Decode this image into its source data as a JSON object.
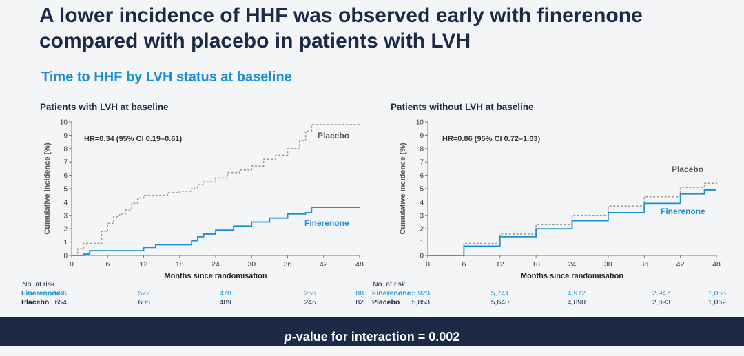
{
  "slide": {
    "title": "A lower incidence of HHF was observed early with finerenone compared with placebo in patients with LVH",
    "subtitle": "Time to HHF by LVH status at baseline",
    "footer_p": "p",
    "footer_rest": "-value for interaction = 0.002"
  },
  "risk_table": {
    "header": "No. at risk",
    "fin_label": "Finerenone",
    "pla_label": "Placebo"
  },
  "chart_data": [
    {
      "type": "line",
      "title": "Patients with LVH at baseline",
      "xlabel": "Months since randomisation",
      "ylabel": "Cumulative incidence (%)",
      "xlim": [
        0,
        48
      ],
      "ylim": [
        0,
        10
      ],
      "xticks": [
        0,
        6,
        12,
        18,
        24,
        30,
        36,
        42,
        48
      ],
      "yticks": [
        0,
        1,
        2,
        3,
        4,
        5,
        6,
        7,
        8,
        9,
        10
      ],
      "annotation": "HR=0.34 (95% CI 0.19–0.61)",
      "series": [
        {
          "name": "Placebo",
          "color": "#9a9a9a",
          "dashed": true,
          "x": [
            0,
            1,
            2,
            3,
            5,
            6,
            7,
            8,
            9,
            10,
            11,
            12,
            14,
            16,
            18,
            20,
            21,
            22,
            24,
            26,
            28,
            30,
            32,
            34,
            36,
            38,
            39,
            40,
            42,
            48
          ],
          "y": [
            0,
            0.5,
            0.9,
            0.9,
            1.8,
            2.4,
            2.9,
            3.1,
            3.4,
            3.9,
            4.3,
            4.5,
            4.5,
            4.7,
            4.8,
            5.0,
            5.3,
            5.5,
            5.8,
            6.2,
            6.4,
            6.7,
            7.2,
            7.5,
            8.0,
            8.6,
            9.3,
            9.8,
            9.8,
            9.8
          ]
        },
        {
          "name": "Finerenone",
          "color": "#1b8fd2",
          "dashed": false,
          "x": [
            0,
            2,
            3,
            11,
            12,
            14,
            18,
            20,
            21,
            22,
            24,
            27,
            30,
            33,
            36,
            39,
            40,
            48
          ],
          "y": [
            0,
            0.1,
            0.35,
            0.35,
            0.6,
            0.8,
            0.8,
            1.1,
            1.4,
            1.6,
            1.9,
            2.2,
            2.5,
            2.8,
            3.1,
            3.2,
            3.6,
            3.6
          ]
        }
      ],
      "risk": {
        "months": [
          0,
          12,
          24,
          36,
          48
        ],
        "Finerenone": [
          "596",
          "572",
          "478",
          "256",
          "88"
        ],
        "Placebo": [
          "654",
          "606",
          "489",
          "245",
          "82"
        ]
      }
    },
    {
      "type": "line",
      "title": "Patients without LVH at baseline",
      "xlabel": "Months since randomisation",
      "ylabel": "Cumulative incidence (%)",
      "xlim": [
        0,
        48
      ],
      "ylim": [
        0,
        10
      ],
      "xticks": [
        0,
        6,
        12,
        18,
        24,
        30,
        36,
        42,
        48
      ],
      "yticks": [
        0,
        1,
        2,
        3,
        4,
        5,
        6,
        7,
        8,
        9,
        10
      ],
      "annotation": "HR=0.86 (95% CI 0.72–1.03)",
      "series": [
        {
          "name": "Placebo",
          "color": "#9a9a9a",
          "dashed": true,
          "x": [
            0,
            6,
            12,
            18,
            24,
            30,
            36,
            42,
            46,
            48
          ],
          "y": [
            0,
            0.9,
            1.6,
            2.3,
            3.0,
            3.7,
            4.4,
            5.1,
            5.4,
            5.7
          ]
        },
        {
          "name": "Finerenone",
          "color": "#1b8fd2",
          "dashed": false,
          "x": [
            0,
            6,
            12,
            18,
            24,
            30,
            36,
            42,
            46,
            48
          ],
          "y": [
            0,
            0.7,
            1.4,
            2.0,
            2.6,
            3.2,
            3.9,
            4.6,
            4.9,
            4.9
          ]
        }
      ],
      "risk": {
        "months": [
          0,
          12,
          24,
          36,
          48
        ],
        "Finerenone": [
          "5,923",
          "5,741",
          "4,972",
          "2,947",
          "1,055"
        ],
        "Placebo": [
          "5,853",
          "5,640",
          "4,890",
          "2,893",
          "1,062"
        ]
      }
    }
  ]
}
